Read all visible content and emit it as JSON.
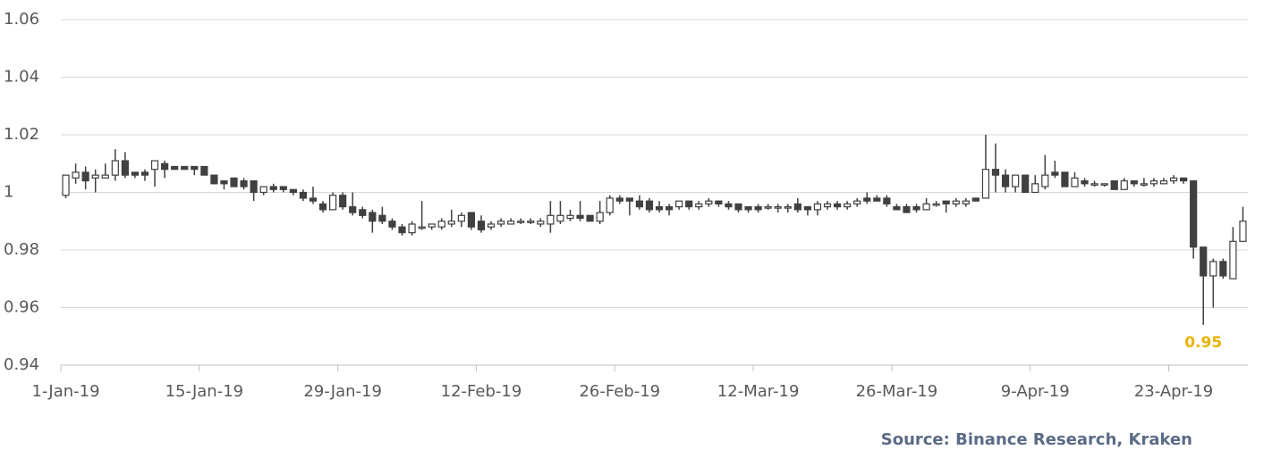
{
  "chart_data": {
    "type": "candlestick",
    "categories": [
      "1-Jan-19",
      null,
      null,
      null,
      null,
      null,
      null,
      null,
      null,
      null,
      null,
      null,
      null,
      null,
      "15-Jan-19",
      null,
      null,
      null,
      null,
      null,
      null,
      null,
      null,
      null,
      null,
      null,
      null,
      null,
      "29-Jan-19",
      null,
      null,
      null,
      null,
      null,
      null,
      null,
      null,
      null,
      null,
      null,
      null,
      null,
      "12-Feb-19",
      null,
      null,
      null,
      null,
      null,
      null,
      null,
      null,
      null,
      null,
      null,
      null,
      null,
      "26-Feb-19",
      null,
      null,
      null,
      null,
      null,
      null,
      null,
      null,
      null,
      null,
      null,
      null,
      null,
      "12-Mar-19",
      null,
      null,
      null,
      null,
      null,
      null,
      null,
      null,
      null,
      null,
      null,
      null,
      null,
      "26-Mar-19",
      null,
      null,
      null,
      null,
      null,
      null,
      null,
      null,
      null,
      null,
      null,
      null,
      null,
      "9-Apr-19",
      null,
      null,
      null,
      null,
      null,
      null,
      null,
      null,
      null,
      null,
      null,
      null,
      null,
      "23-Apr-19",
      null,
      null,
      null,
      null,
      null,
      null,
      null
    ],
    "open": [
      0.999,
      1.005,
      1.007,
      1.005,
      1.005,
      1.006,
      1.011,
      1.007,
      1.007,
      1.008,
      1.01,
      1.009,
      1.009,
      1.009,
      1.009,
      1.006,
      1.004,
      1.005,
      1.004,
      1.004,
      1.0,
      1.002,
      1.002,
      1.001,
      1.0,
      0.998,
      0.996,
      0.994,
      0.999,
      0.995,
      0.994,
      0.993,
      0.992,
      0.99,
      0.988,
      0.986,
      0.988,
      0.988,
      0.988,
      0.989,
      0.99,
      0.993,
      0.99,
      0.988,
      0.989,
      0.989,
      0.99,
      0.99,
      0.989,
      0.989,
      0.99,
      0.991,
      0.992,
      0.992,
      0.99,
      0.993,
      0.998,
      0.998,
      0.997,
      0.997,
      0.995,
      0.995,
      0.995,
      0.997,
      0.995,
      0.996,
      0.997,
      0.996,
      0.996,
      0.995,
      0.995,
      0.995,
      0.995,
      0.995,
      0.996,
      0.995,
      0.994,
      0.995,
      0.996,
      0.995,
      0.996,
      0.998,
      0.998,
      0.998,
      0.995,
      0.995,
      0.995,
      0.994,
      0.996,
      0.997,
      0.996,
      0.996,
      0.998,
      0.998,
      1.008,
      1.006,
      1.002,
      1.006,
      1.0,
      1.002,
      1.007,
      1.007,
      1.002,
      1.004,
      1.003,
      1.003,
      1.004,
      1.001,
      1.004,
      1.003,
      1.003,
      1.003,
      1.004,
      1.005,
      1.004,
      0.981,
      0.971,
      0.976,
      0.97,
      0.983
    ],
    "high": [
      1.006,
      1.01,
      1.009,
      1.008,
      1.01,
      1.015,
      1.014,
      1.007,
      1.008,
      1.011,
      1.011,
      1.009,
      1.009,
      1.009,
      1.009,
      1.006,
      1.004,
      1.005,
      1.005,
      1.004,
      1.002,
      1.003,
      1.002,
      1.001,
      1.001,
      1.002,
      0.997,
      1.0,
      1.0,
      1.0,
      0.995,
      0.994,
      0.995,
      0.991,
      0.989,
      0.99,
      0.997,
      0.989,
      0.991,
      0.994,
      0.993,
      0.993,
      0.992,
      0.99,
      0.991,
      0.991,
      0.991,
      0.991,
      0.991,
      0.997,
      0.997,
      0.994,
      0.997,
      0.992,
      0.997,
      0.999,
      0.999,
      0.998,
      0.999,
      0.998,
      0.997,
      0.996,
      0.997,
      0.997,
      0.997,
      0.998,
      0.997,
      0.997,
      0.996,
      0.995,
      0.996,
      0.996,
      0.996,
      0.996,
      0.998,
      0.995,
      0.997,
      0.997,
      0.997,
      0.997,
      0.998,
      1.0,
      0.999,
      0.999,
      0.996,
      0.996,
      0.996,
      0.998,
      0.997,
      0.997,
      0.998,
      0.998,
      0.998,
      1.02,
      1.017,
      1.008,
      1.006,
      1.006,
      1.006,
      1.013,
      1.011,
      1.007,
      1.007,
      1.005,
      1.004,
      1.003,
      1.004,
      1.005,
      1.004,
      1.005,
      1.005,
      1.005,
      1.006,
      1.005,
      1.004,
      0.981,
      0.977,
      0.977,
      0.988,
      0.995
    ],
    "low": [
      0.998,
      1.003,
      1.001,
      1.0,
      1.005,
      1.004,
      1.005,
      1.005,
      1.004,
      1.002,
      1.005,
      1.008,
      1.008,
      1.006,
      1.006,
      1.003,
      1.001,
      1.002,
      1.001,
      0.997,
      0.999,
      1.0,
      1.0,
      0.999,
      0.997,
      0.996,
      0.993,
      0.994,
      0.994,
      0.992,
      0.991,
      0.986,
      0.989,
      0.987,
      0.985,
      0.985,
      0.987,
      0.987,
      0.987,
      0.988,
      0.988,
      0.987,
      0.986,
      0.987,
      0.988,
      0.989,
      0.989,
      0.989,
      0.988,
      0.986,
      0.989,
      0.99,
      0.99,
      0.99,
      0.989,
      0.992,
      0.996,
      0.992,
      0.994,
      0.993,
      0.993,
      0.992,
      0.994,
      0.994,
      0.994,
      0.995,
      0.995,
      0.994,
      0.993,
      0.993,
      0.993,
      0.994,
      0.993,
      0.993,
      0.993,
      0.992,
      0.992,
      0.994,
      0.994,
      0.994,
      0.995,
      0.996,
      0.997,
      0.995,
      0.994,
      0.993,
      0.993,
      0.994,
      0.995,
      0.993,
      0.995,
      0.995,
      0.997,
      0.998,
      1.0,
      1.0,
      1.0,
      1.0,
      1.0,
      1.001,
      1.005,
      1.002,
      1.002,
      1.002,
      1.002,
      1.002,
      1.001,
      1.001,
      1.002,
      1.002,
      1.002,
      1.003,
      1.003,
      1.003,
      0.977,
      0.954,
      0.96,
      0.97,
      0.97,
      0.983
    ],
    "close": [
      1.006,
      1.007,
      1.004,
      1.006,
      1.006,
      1.011,
      1.006,
      1.006,
      1.006,
      1.011,
      1.008,
      1.008,
      1.008,
      1.008,
      1.006,
      1.003,
      1.003,
      1.002,
      1.002,
      1.0,
      1.002,
      1.001,
      1.001,
      1.0,
      0.998,
      0.997,
      0.994,
      0.999,
      0.995,
      0.993,
      0.992,
      0.99,
      0.99,
      0.988,
      0.986,
      0.989,
      0.988,
      0.989,
      0.99,
      0.99,
      0.992,
      0.988,
      0.987,
      0.989,
      0.99,
      0.99,
      0.99,
      0.99,
      0.99,
      0.992,
      0.992,
      0.992,
      0.991,
      0.99,
      0.993,
      0.998,
      0.997,
      0.997,
      0.995,
      0.994,
      0.994,
      0.994,
      0.997,
      0.995,
      0.996,
      0.997,
      0.996,
      0.995,
      0.994,
      0.994,
      0.994,
      0.995,
      0.995,
      0.995,
      0.994,
      0.994,
      0.996,
      0.996,
      0.995,
      0.996,
      0.997,
      0.997,
      0.997,
      0.996,
      0.994,
      0.993,
      0.994,
      0.996,
      0.996,
      0.996,
      0.997,
      0.997,
      0.997,
      1.008,
      1.006,
      1.002,
      1.006,
      1.0,
      1.003,
      1.006,
      1.006,
      1.002,
      1.005,
      1.003,
      1.003,
      1.003,
      1.001,
      1.004,
      1.003,
      1.003,
      1.004,
      1.004,
      1.005,
      1.004,
      0.981,
      0.971,
      0.976,
      0.971,
      0.983,
      0.99
    ],
    "up_color": "#ffffff",
    "down_color": "#404040",
    "ylim": [
      0.94,
      1.06
    ],
    "yticks": [
      0.94,
      0.96,
      0.98,
      1,
      1.02,
      1.04,
      1.06
    ],
    "grid": true,
    "annotation": {
      "text": "0.95",
      "color": "#e8b400"
    },
    "source": "Source: Binance Research, Kraken"
  }
}
